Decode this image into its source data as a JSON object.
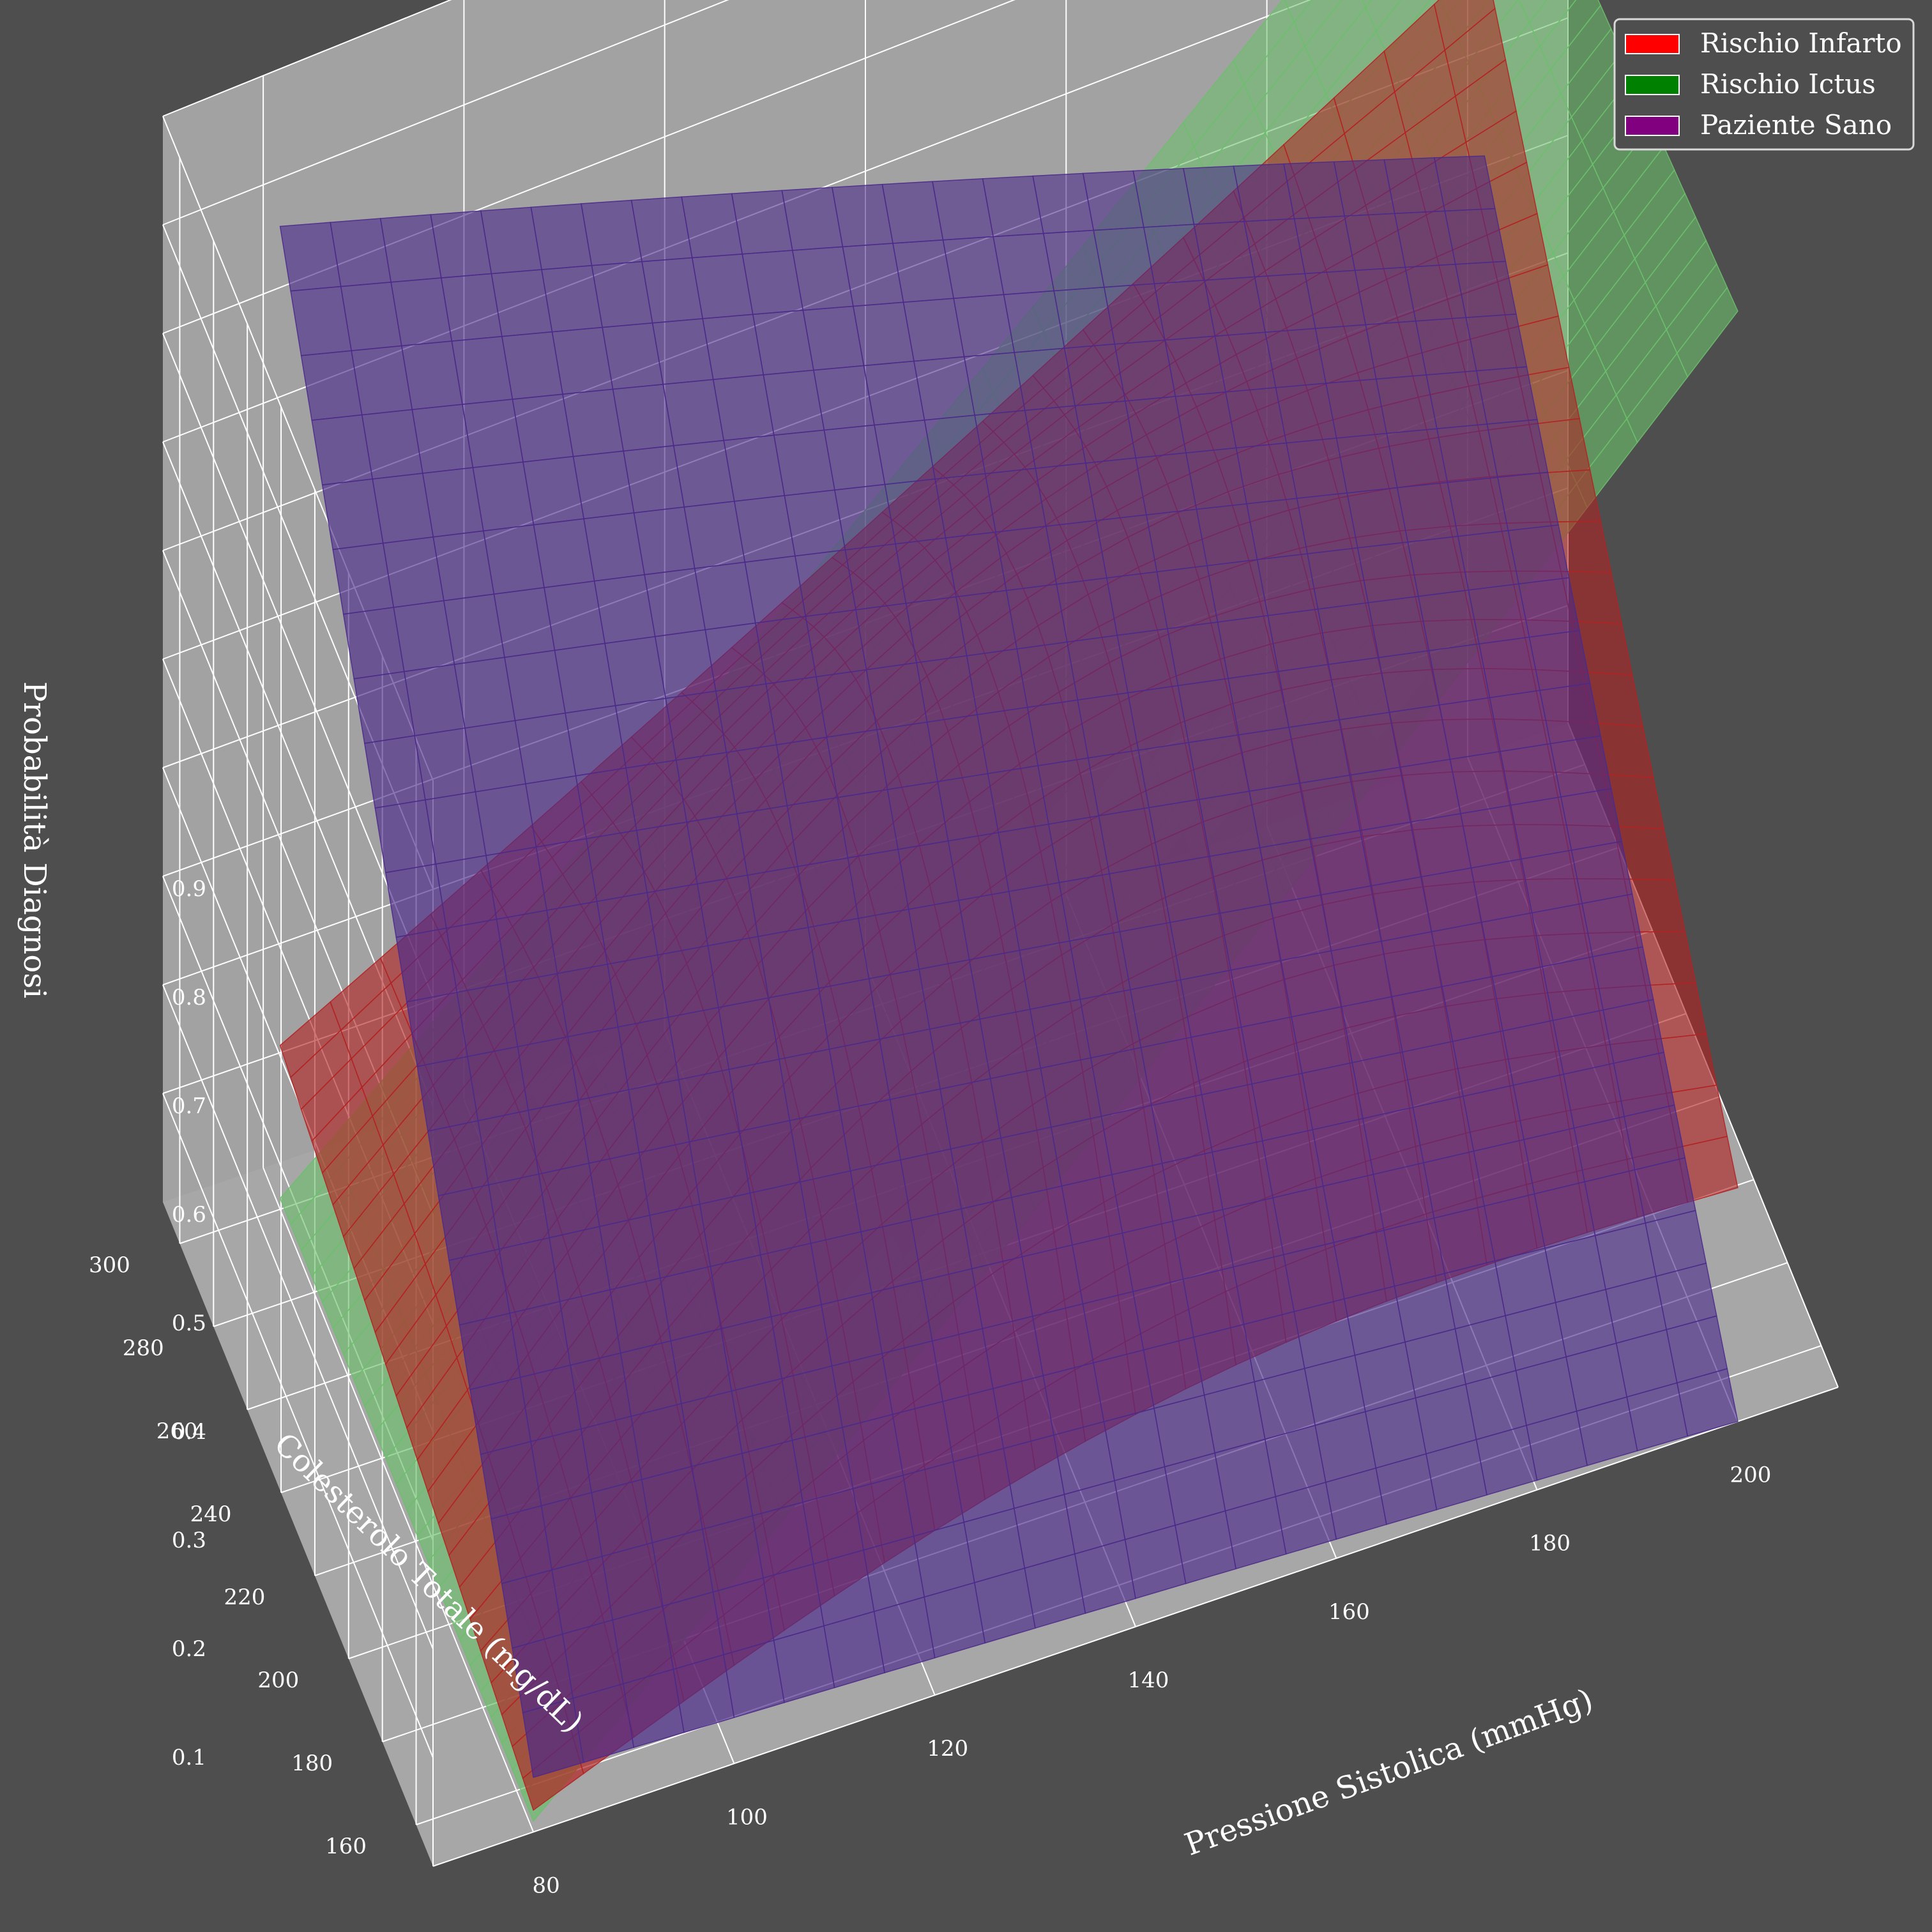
{
  "chart_data": {
    "type": "surface3d",
    "xlabel": "Pressione Sistolica (mmHg)",
    "ylabel": "Colesterolo Totale (mg/dL)",
    "zlabel": "Probabilità Diagnosi",
    "xlim": [
      70,
      210
    ],
    "ylim": [
      150,
      310
    ],
    "zlim": [
      0,
      1
    ],
    "x_ticks": [
      80,
      100,
      120,
      140,
      160,
      180,
      200
    ],
    "y_ticks": [
      160,
      180,
      200,
      220,
      240,
      260,
      280,
      300
    ],
    "z_ticks": [
      0.1,
      0.2,
      0.3,
      0.4,
      0.5,
      0.6,
      0.7,
      0.8,
      0.9
    ],
    "grid": true,
    "legend_position": "top-right",
    "series": [
      {
        "name": "Rischio Infarto",
        "legend_color": "#ff0000",
        "surface_color": "#b22222",
        "corners": {
          "x80_y150": 0.02,
          "x200_y150": 0.2,
          "x80_y300": 0.15,
          "x200_y300": 0.72
        },
        "peak_value": 0.73
      },
      {
        "name": "Rischio Ictus",
        "legend_color": "#008000",
        "surface_color": "#6cbf6c",
        "corners": {
          "x80_y150": 0.01,
          "x200_y150": 0.95,
          "x80_y300": 0.01,
          "x200_y300": 0.9
        }
      },
      {
        "name": "Paziente Sano",
        "legend_color": "#800080",
        "surface_color": "#4b2a8a",
        "corners": {
          "x80_y150": 0.05,
          "x200_y150": 0.0,
          "x80_y300": 0.9,
          "x200_y300": 0.55
        }
      }
    ]
  }
}
